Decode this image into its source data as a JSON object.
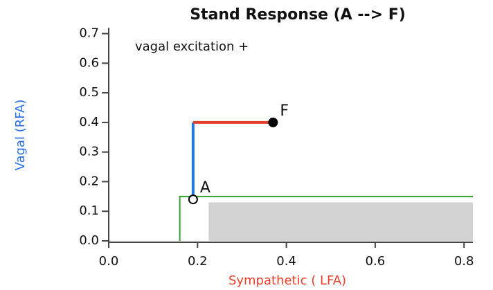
{
  "chart_data": {
    "type": "line",
    "title": "Stand Response (A --> F)",
    "x_label": "Sympathetic ( LFA)",
    "y_label": "Vagal (RFA)",
    "x_label_color": "#e8402a",
    "y_label_color": "#2a6fe8",
    "annotation": "vagal excitation +",
    "xlim": [
      0,
      0.82
    ],
    "ylim": [
      0,
      0.72
    ],
    "xticks": [
      {
        "value": 0,
        "label": "0.0"
      },
      0.2,
      0.4,
      0.6,
      0.8
    ],
    "yticks": [
      {
        "value": 0,
        "label": "0.0"
      },
      0.1,
      0.2,
      0.3,
      0.4,
      0.5,
      0.6,
      0.7
    ],
    "grid": false,
    "region": {
      "x": [
        0.225,
        0.82
      ],
      "y": [
        0,
        0.13
      ],
      "color": "#d3d3d3"
    },
    "series": [
      {
        "color": "#33a02c",
        "x": [
          0.16,
          0.16,
          0.82
        ],
        "values": [
          0,
          0.15,
          0.15
        ]
      },
      {
        "color": "#1f78e4",
        "x": [
          0.19,
          0.19
        ],
        "values": [
          0.14,
          0.4
        ]
      },
      {
        "color": "#e0402a",
        "x": [
          0.19,
          0.37
        ],
        "values": [
          0.4,
          0.4
        ]
      }
    ],
    "points": [
      {
        "label": "A",
        "x": 0.19,
        "y": 0.14,
        "filled": false
      },
      {
        "label": "F",
        "x": 0.37,
        "y": 0.4,
        "filled": true
      }
    ]
  }
}
